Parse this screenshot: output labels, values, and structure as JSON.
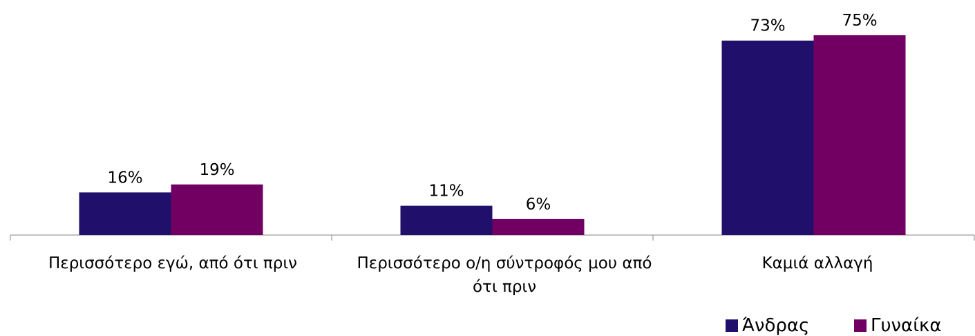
{
  "chart_data": {
    "type": "bar",
    "categories": [
      "Περισσότερο εγώ, από ότι πριν",
      "Περισσότερο ο/η σύντροφός μου από ότι πριν",
      "Καμιά αλλαγή"
    ],
    "series": [
      {
        "name": "Άνδρας",
        "values": [
          16,
          11,
          73
        ],
        "labels": [
          "16%",
          "11%",
          "73%"
        ],
        "color": "#21106b"
      },
      {
        "name": "Γυναίκα",
        "values": [
          19,
          6,
          75
        ],
        "labels": [
          "19%",
          "6%",
          "75%"
        ],
        "color": "#720062"
      }
    ],
    "ylim": [
      0,
      75
    ],
    "grid": false,
    "legend_position": "bottom-right"
  }
}
